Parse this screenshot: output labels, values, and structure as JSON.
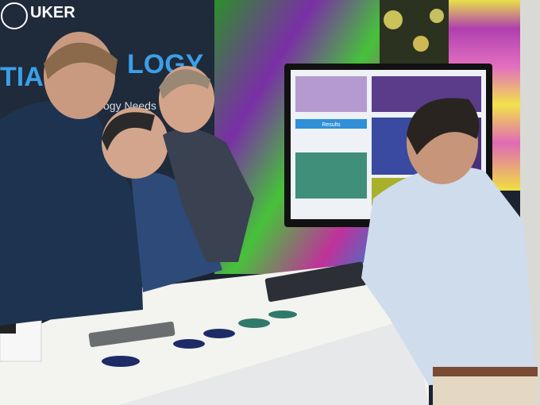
{
  "background_sign": {
    "brand": "UKER",
    "headline": "TIAL",
    "headline_2": "LOGY",
    "tagline": "ogy Needs"
  },
  "monitor": {
    "section_heading": "Results"
  }
}
